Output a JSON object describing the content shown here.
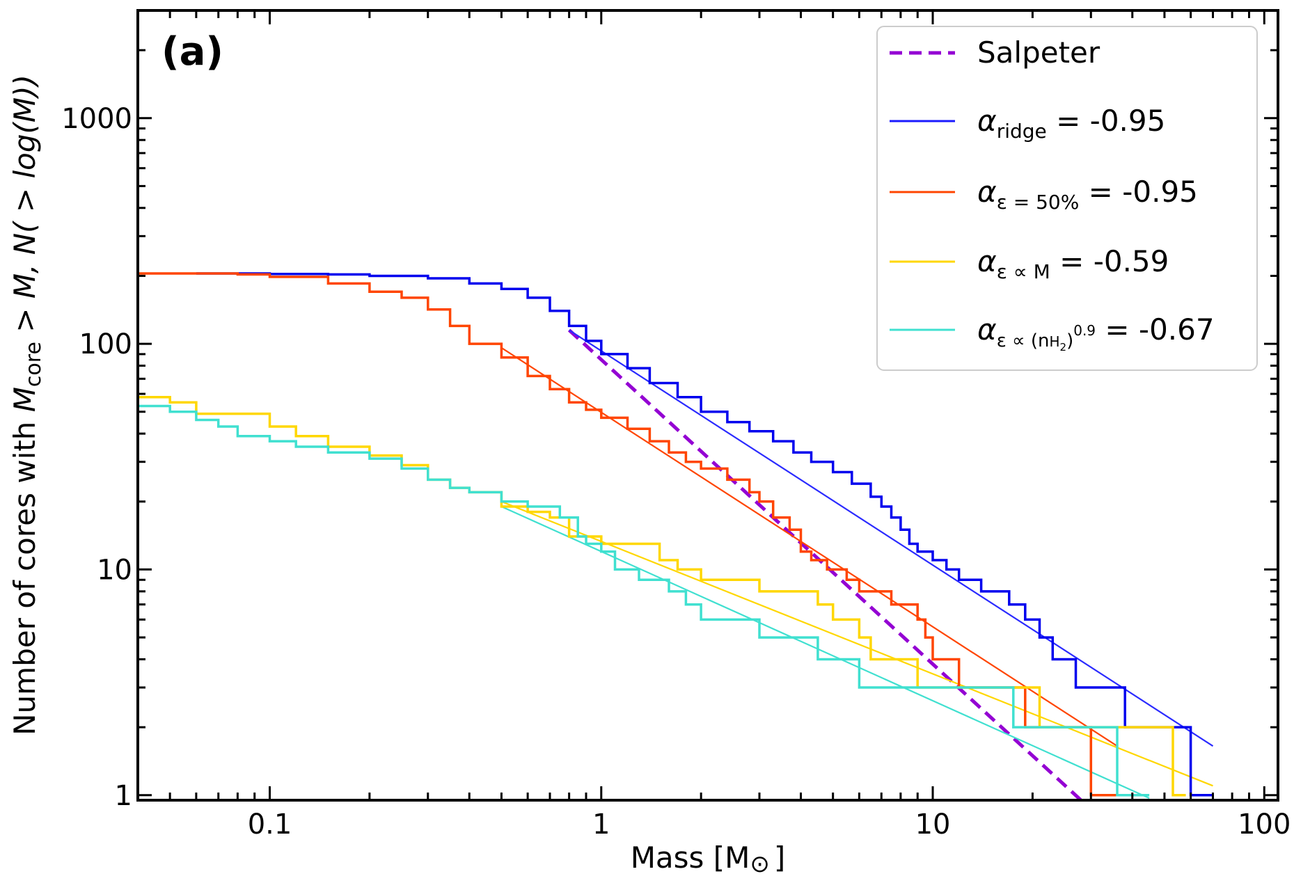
{
  "chart_data": {
    "type": "line",
    "panel_label": "(a)",
    "xlabel": "Mass [M",
    "xlabel_symbol": "⊙",
    "xlabel_close": "]",
    "ylabel_prefix": "Number of cores with ",
    "ylabel_M": "M",
    "ylabel_sub": "core",
    "ylabel_suffix": " > M, N( > log(M))",
    "x_scale": "log",
    "y_scale": "log",
    "xlim": [
      0.04,
      110
    ],
    "ylim": [
      0.95,
      3000
    ],
    "x_ticks": [
      0.1,
      1,
      10,
      100
    ],
    "x_tick_labels": [
      "0.1",
      "1",
      "10",
      "100"
    ],
    "y_ticks": [
      1,
      10,
      100,
      1000
    ],
    "y_tick_labels": [
      "1",
      "10",
      "100",
      "1000"
    ],
    "legend_position": "top-right",
    "legend": [
      {
        "key": "salpeter",
        "base": "Salpeter",
        "sub": "",
        "sup_html": "",
        "value": "",
        "color": "#9400d3",
        "style": "dashed"
      },
      {
        "key": "ridge",
        "base": "α",
        "sub": "ridge",
        "value": " = -0.95",
        "color": "#1a1aff",
        "style": "solid"
      },
      {
        "key": "eps50",
        "base": "α",
        "sub": "ε = 50%",
        "value": " = -0.95",
        "color": "#ff4500",
        "style": "solid"
      },
      {
        "key": "epsM",
        "base": "α",
        "sub": "ε ∝ M",
        "value": " = -0.59",
        "color": "#ffd700",
        "style": "solid"
      },
      {
        "key": "epsn",
        "base": "α",
        "sub": "ε ∝ (n",
        "sub2": "H",
        "sub3": "2",
        "sub4": ")",
        "sup": "0.9",
        "value": " = -0.67",
        "color": "#40e0d0",
        "style": "solid"
      }
    ],
    "series": [
      {
        "name": "ridge",
        "kind": "step",
        "color": "#0000ee",
        "width": 3.5,
        "points": [
          [
            0.06,
            205
          ],
          [
            0.1,
            204
          ],
          [
            0.15,
            203
          ],
          [
            0.2,
            200
          ],
          [
            0.3,
            195
          ],
          [
            0.4,
            185
          ],
          [
            0.5,
            175
          ],
          [
            0.6,
            160
          ],
          [
            0.7,
            140
          ],
          [
            0.8,
            120
          ],
          [
            0.9,
            103
          ],
          [
            1.0,
            90
          ],
          [
            1.2,
            78
          ],
          [
            1.4,
            67
          ],
          [
            1.7,
            58
          ],
          [
            2.0,
            50
          ],
          [
            2.4,
            45
          ],
          [
            2.8,
            41
          ],
          [
            3.3,
            37
          ],
          [
            3.8,
            33
          ],
          [
            4.3,
            30
          ],
          [
            5.0,
            27
          ],
          [
            5.7,
            24
          ],
          [
            6.5,
            21
          ],
          [
            7.0,
            19
          ],
          [
            7.5,
            17
          ],
          [
            8.0,
            15
          ],
          [
            8.5,
            13
          ],
          [
            9.0,
            12
          ],
          [
            10.0,
            11
          ],
          [
            11.0,
            10
          ],
          [
            12.0,
            9
          ],
          [
            14.0,
            8
          ],
          [
            17.0,
            7
          ],
          [
            19.0,
            6
          ],
          [
            21.0,
            5
          ],
          [
            23.0,
            4
          ],
          [
            27.0,
            3
          ],
          [
            36.0,
            3
          ],
          [
            38.0,
            2
          ],
          [
            58.0,
            2
          ],
          [
            60.0,
            1
          ],
          [
            70.0,
            1
          ]
        ]
      },
      {
        "name": "eps50",
        "kind": "step",
        "color": "#ff4500",
        "width": 3.5,
        "points": [
          [
            0.04,
            205
          ],
          [
            0.08,
            203
          ],
          [
            0.1,
            198
          ],
          [
            0.15,
            185
          ],
          [
            0.2,
            170
          ],
          [
            0.25,
            160
          ],
          [
            0.3,
            142
          ],
          [
            0.35,
            120
          ],
          [
            0.4,
            100
          ],
          [
            0.5,
            87
          ],
          [
            0.6,
            72
          ],
          [
            0.7,
            63
          ],
          [
            0.8,
            55
          ],
          [
            0.9,
            51
          ],
          [
            1.0,
            47
          ],
          [
            1.2,
            42
          ],
          [
            1.4,
            37
          ],
          [
            1.6,
            33
          ],
          [
            1.8,
            30
          ],
          [
            2.0,
            28
          ],
          [
            2.4,
            25
          ],
          [
            2.8,
            22
          ],
          [
            3.0,
            20
          ],
          [
            3.3,
            17
          ],
          [
            3.7,
            15
          ],
          [
            4.0,
            12
          ],
          [
            4.3,
            11
          ],
          [
            4.8,
            10
          ],
          [
            5.5,
            9
          ],
          [
            6.0,
            8
          ],
          [
            7.5,
            7
          ],
          [
            9.0,
            6
          ],
          [
            9.5,
            5
          ],
          [
            10.0,
            4
          ],
          [
            12.0,
            3
          ],
          [
            18.0,
            3
          ],
          [
            19.0,
            2
          ],
          [
            29.0,
            2
          ],
          [
            30.0,
            1
          ],
          [
            36.0,
            1
          ]
        ]
      },
      {
        "name": "epsM",
        "kind": "step",
        "color": "#ffd700",
        "width": 3.5,
        "points": [
          [
            0.04,
            58
          ],
          [
            0.05,
            55
          ],
          [
            0.06,
            49
          ],
          [
            0.1,
            43
          ],
          [
            0.12,
            39
          ],
          [
            0.15,
            35
          ],
          [
            0.2,
            32
          ],
          [
            0.25,
            29
          ],
          [
            0.3,
            25
          ],
          [
            0.35,
            23
          ],
          [
            0.4,
            22
          ],
          [
            0.5,
            19
          ],
          [
            0.6,
            18
          ],
          [
            0.7,
            17
          ],
          [
            0.8,
            14
          ],
          [
            1.0,
            13
          ],
          [
            1.5,
            11
          ],
          [
            1.7,
            10
          ],
          [
            2.0,
            9
          ],
          [
            3.0,
            8
          ],
          [
            4.5,
            7
          ],
          [
            5.0,
            6
          ],
          [
            6.0,
            5
          ],
          [
            6.5,
            4
          ],
          [
            9.0,
            3
          ],
          [
            18.0,
            3
          ],
          [
            21.0,
            2
          ],
          [
            52.0,
            2
          ],
          [
            53.0,
            1
          ],
          [
            58.0,
            1
          ]
        ]
      },
      {
        "name": "epsn",
        "kind": "step",
        "color": "#40e0d0",
        "width": 3.5,
        "points": [
          [
            0.04,
            53
          ],
          [
            0.05,
            50
          ],
          [
            0.06,
            46
          ],
          [
            0.07,
            43
          ],
          [
            0.08,
            39
          ],
          [
            0.1,
            37
          ],
          [
            0.12,
            35
          ],
          [
            0.15,
            33
          ],
          [
            0.2,
            31
          ],
          [
            0.25,
            28
          ],
          [
            0.3,
            25
          ],
          [
            0.35,
            23
          ],
          [
            0.4,
            22
          ],
          [
            0.5,
            20
          ],
          [
            0.6,
            19
          ],
          [
            0.75,
            17
          ],
          [
            0.85,
            14
          ],
          [
            0.9,
            13
          ],
          [
            1.0,
            12
          ],
          [
            1.1,
            10
          ],
          [
            1.3,
            9
          ],
          [
            1.6,
            8
          ],
          [
            1.8,
            7
          ],
          [
            2.0,
            6
          ],
          [
            3.0,
            5
          ],
          [
            4.5,
            4
          ],
          [
            6.0,
            3
          ],
          [
            17.0,
            3
          ],
          [
            17.5,
            2
          ],
          [
            30.0,
            2
          ],
          [
            33.0,
            2
          ],
          [
            36.0,
            1
          ],
          [
            45.0,
            1
          ]
        ]
      },
      {
        "name": "salpeter_fit",
        "kind": "line",
        "color": "#9400d3",
        "width": 5,
        "dash": "18,10",
        "points": [
          [
            0.8,
            115
          ],
          [
            28.0,
            0.95
          ]
        ]
      },
      {
        "name": "ridge_fit",
        "kind": "line",
        "color": "#2b2bff",
        "width": 2.2,
        "points": [
          [
            0.8,
            115
          ],
          [
            70.0,
            1.65
          ]
        ]
      },
      {
        "name": "eps50_fit",
        "kind": "line",
        "color": "#ff4500",
        "width": 2.2,
        "points": [
          [
            0.5,
            96
          ],
          [
            36.0,
            1.65
          ]
        ]
      },
      {
        "name": "epsM_fit",
        "kind": "line",
        "color": "#ffd700",
        "width": 2.2,
        "points": [
          [
            0.5,
            20
          ],
          [
            70.0,
            1.1
          ]
        ]
      },
      {
        "name": "epsn_fit",
        "kind": "line",
        "color": "#40e0d0",
        "width": 2.2,
        "points": [
          [
            0.5,
            19
          ],
          [
            45.0,
            0.97
          ]
        ]
      }
    ]
  }
}
